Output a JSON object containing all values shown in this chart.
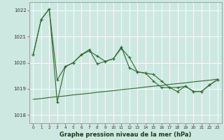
{
  "xlabel": "Graphe pression niveau de la mer (hPa)",
  "bg_color": "#cce8e0",
  "grid_color": "#ffffff",
  "line_color": "#2d6a2d",
  "ylim": [
    1017.7,
    1022.3
  ],
  "xlim": [
    -0.5,
    23.5
  ],
  "yticks": [
    1018,
    1019,
    1020,
    1021,
    1022
  ],
  "xticks": [
    0,
    1,
    2,
    3,
    4,
    5,
    6,
    7,
    8,
    9,
    10,
    11,
    12,
    13,
    14,
    15,
    16,
    17,
    18,
    19,
    20,
    21,
    22,
    23
  ],
  "series1_x": [
    0,
    1,
    2,
    3,
    4,
    5,
    6,
    7,
    8,
    9,
    10,
    11,
    12,
    13,
    14,
    15,
    16,
    17,
    18,
    19,
    20,
    21,
    22,
    23
  ],
  "series1_y": [
    1020.3,
    1021.65,
    1022.05,
    1019.35,
    1019.85,
    1020.0,
    1020.3,
    1020.45,
    1020.25,
    1020.05,
    1020.15,
    1020.55,
    1020.2,
    1019.65,
    1019.6,
    1019.55,
    1019.3,
    1019.05,
    1019.05,
    1019.1,
    1018.9,
    1018.9,
    1019.15,
    1019.35
  ],
  "series2_x": [
    0,
    1,
    2,
    3,
    4,
    5,
    6,
    7,
    8,
    9,
    10,
    11,
    12,
    13,
    14,
    15,
    16,
    17,
    18,
    19,
    20,
    21,
    22,
    23
  ],
  "series2_y": [
    1020.3,
    1021.65,
    1022.05,
    1018.5,
    1019.85,
    1020.0,
    1020.3,
    1020.5,
    1019.95,
    1020.05,
    1020.15,
    1020.6,
    1019.8,
    1019.65,
    1019.6,
    1019.3,
    1019.05,
    1019.05,
    1018.9,
    1019.1,
    1018.9,
    1018.9,
    1019.15,
    1019.35
  ],
  "series3_x": [
    0,
    1,
    2,
    3,
    4,
    5,
    6,
    7,
    8,
    9,
    10,
    11,
    12,
    13,
    14,
    15,
    16,
    17,
    18,
    19,
    20,
    21,
    22,
    23
  ],
  "series3_y": [
    1018.6,
    1018.63,
    1018.67,
    1018.7,
    1018.73,
    1018.77,
    1018.8,
    1018.83,
    1018.87,
    1018.9,
    1018.93,
    1018.97,
    1019.0,
    1019.03,
    1019.07,
    1019.1,
    1019.13,
    1019.17,
    1019.2,
    1019.23,
    1019.27,
    1019.3,
    1019.33,
    1019.37
  ]
}
